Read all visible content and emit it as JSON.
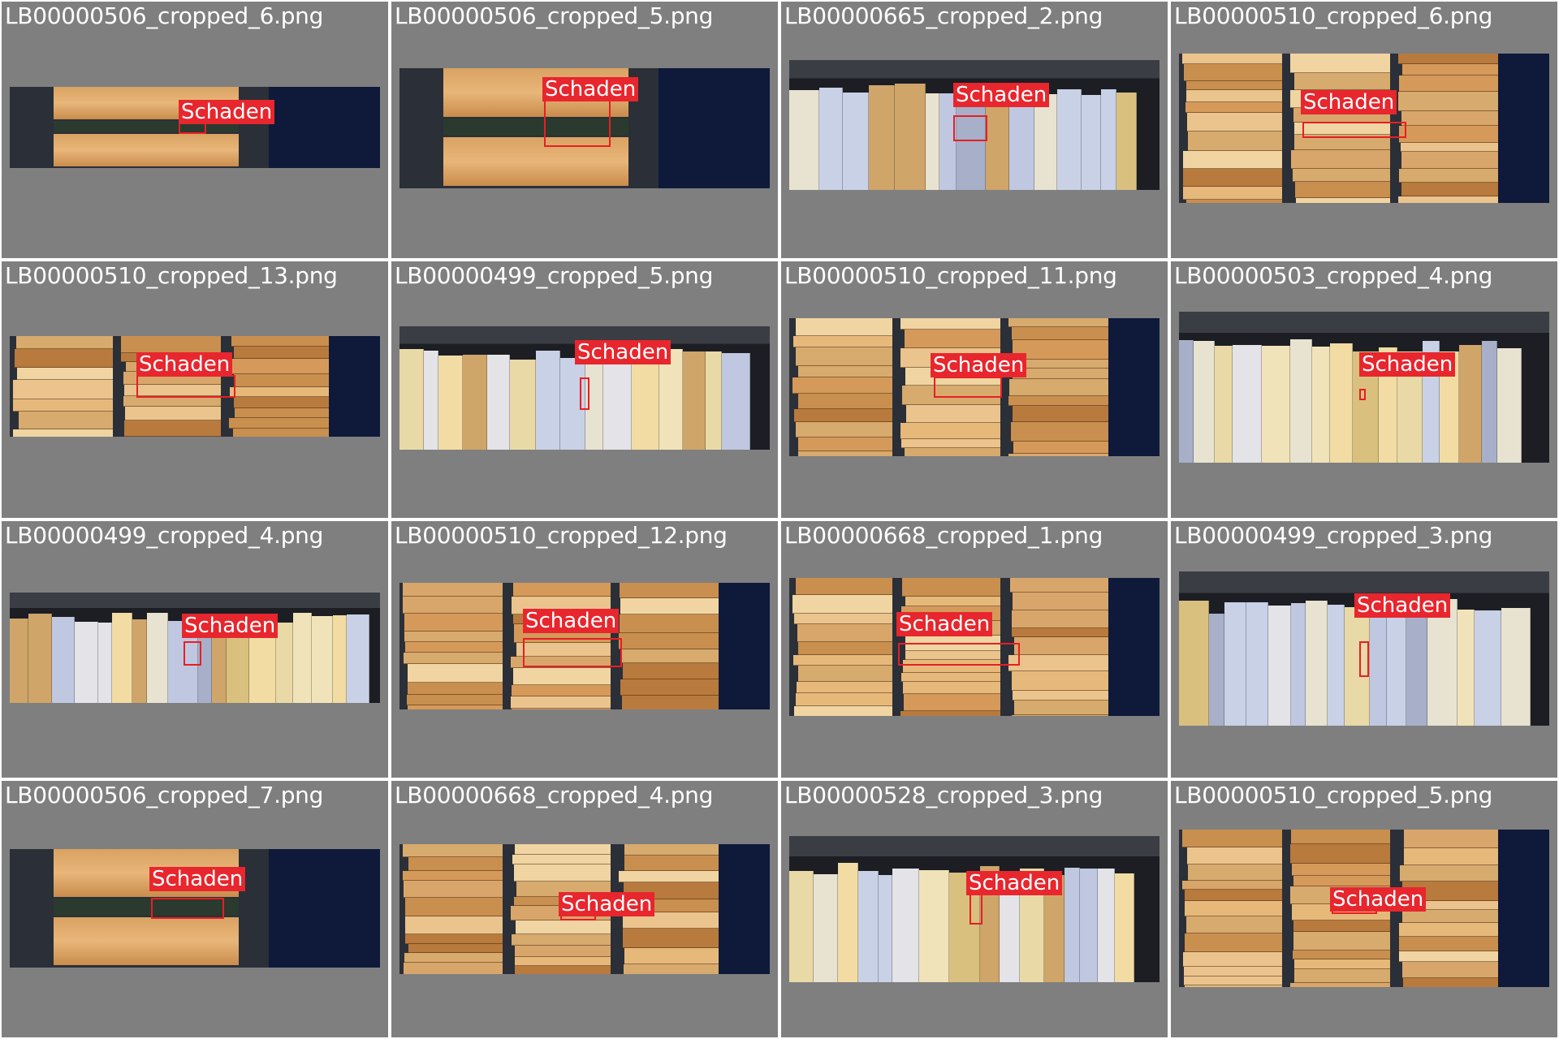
{
  "palette": {
    "background": "#7f7f7f",
    "text": "#ffffff",
    "label_fill": "#e8262d",
    "box_stroke": "#e81e25"
  },
  "tiles": [
    {
      "filename": "LB00000506_cropped_6.png",
      "label": "Schaden"
    },
    {
      "filename": "LB00000506_cropped_5.png",
      "label": "Schaden"
    },
    {
      "filename": "LB00000665_cropped_2.png",
      "label": "Schaden"
    },
    {
      "filename": "LB00000510_cropped_6.png",
      "label": "Schaden"
    },
    {
      "filename": "LB00000510_cropped_13.png",
      "label": "Schaden"
    },
    {
      "filename": "LB00000499_cropped_5.png",
      "label": "Schaden"
    },
    {
      "filename": "LB00000510_cropped_11.png",
      "label": "Schaden"
    },
    {
      "filename": "LB00000503_cropped_4.png",
      "label": "Schaden"
    },
    {
      "filename": "LB00000499_cropped_4.png",
      "label": "Schaden"
    },
    {
      "filename": "LB00000510_cropped_12.png",
      "label": "Schaden"
    },
    {
      "filename": "LB00000668_cropped_1.png",
      "label": "Schaden"
    },
    {
      "filename": "LB00000499_cropped_3.png",
      "label": "Schaden"
    },
    {
      "filename": "LB00000506_cropped_7.png",
      "label": "Schaden"
    },
    {
      "filename": "LB00000668_cropped_4.png",
      "label": "Schaden"
    },
    {
      "filename": "LB00000528_cropped_3.png",
      "label": "Schaden"
    },
    {
      "filename": "LB00000510_cropped_5.png",
      "label": "Schaden"
    }
  ]
}
